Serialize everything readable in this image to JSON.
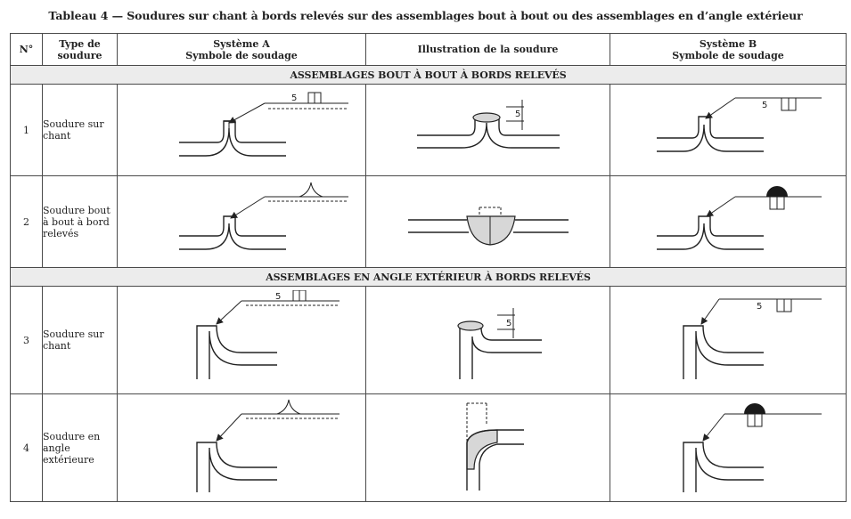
{
  "title": "Tableau 4 — Soudures sur chant à bords relevés sur des assemblages bout à bout ou des assemblages en d’angle extérieur",
  "columns": {
    "num": "N°",
    "type_line1": "Type de",
    "type_line2": "soudure",
    "sysA_line1": "Système A",
    "sysA_line2": "Symbole de soudage",
    "illus": "Illustration de la soudure",
    "sysB_line1": "Système B",
    "sysB_line2": "Symbole de soudage"
  },
  "sections": [
    "ASSEMBLAGES BOUT À BOUT À BORDS RELEVÉS",
    "ASSEMBLAGES EN ANGLE EXTÉRIEUR À BORDS RELEVÉS"
  ],
  "rows": [
    {
      "num": "1",
      "type": "Soudure sur chant",
      "dimension": "5"
    },
    {
      "num": "2",
      "type": "Soudure bout à bout à bord relevés",
      "dimension": ""
    },
    {
      "num": "3",
      "type": "Soudure sur chant",
      "dimension": "5"
    },
    {
      "num": "4",
      "type": "Soudure en angle extérieure",
      "dimension": ""
    }
  ]
}
